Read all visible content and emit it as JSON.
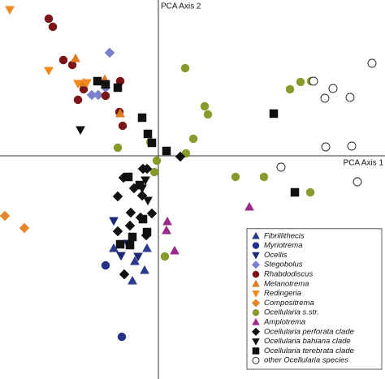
{
  "chart_data": {
    "type": "scatter",
    "xlabel": "PCA Axis 1",
    "ylabel": "PCA Axis 2",
    "xlim": [
      -195,
      279
    ],
    "ylim": [
      -275,
      192
    ],
    "legend": "lower right",
    "series": [
      {
        "name": "Fibrillithecis",
        "color": "#2b3a8c",
        "marker": "triangle",
        "x": [
          -55,
          -14,
          -29,
          -17,
          -32
        ],
        "y": [
          -114,
          -114,
          -130,
          -141,
          -154
        ]
      },
      {
        "name": "Myriotrema",
        "color": "#26328a",
        "marker": "circle",
        "x": [
          -65,
          -45
        ],
        "y": [
          -135,
          -223
        ]
      },
      {
        "name": "Ocellis",
        "color": "#1e2a78",
        "marker": "triangle-down",
        "x": [
          -55,
          -46,
          -25,
          -38
        ],
        "y": [
          -80,
          -123,
          -124,
          -108
        ]
      },
      {
        "name": "Stegobolus",
        "color": "#7b80cf",
        "marker": "diamond",
        "x": [
          -60,
          -82,
          -74,
          -65
        ],
        "y": [
          127,
          75,
          75,
          84
        ]
      },
      {
        "name": "Rhabdodiscus",
        "color": "#7a1416",
        "marker": "circle",
        "x": [
          -135,
          -130,
          -117,
          -106,
          -99,
          -92,
          -65,
          -48,
          -44,
          -47
        ],
        "y": [
          169,
          159,
          118,
          112,
          69,
          82,
          74,
          54,
          37,
          92
        ]
      },
      {
        "name": "Melanotrema",
        "color": "#e07b20",
        "marker": "triangle",
        "x": [
          -102,
          -92,
          -66,
          -47
        ],
        "y": [
          120,
          90,
          94,
          52
        ]
      },
      {
        "name": "Redingeria",
        "color": "#f08a1e",
        "marker": "triangle-down",
        "x": [
          -183,
          -135,
          -99,
          -88
        ],
        "y": [
          180,
          105,
          89,
          90
        ]
      },
      {
        "name": "Compositrema",
        "color": "#e8842a",
        "marker": "diamond",
        "x": [
          -189,
          -165
        ],
        "y": [
          -74,
          -89
        ]
      },
      {
        "name": "Ocellularia s.str.",
        "color": "#8a9a2a",
        "marker": "circle",
        "x": [
          33,
          57,
          61,
          43,
          34,
          -2,
          -50,
          -10,
          95,
          130,
          187,
          162,
          175,
          188,
          8,
          -5
        ],
        "y": [
          108,
          61,
          51,
          21,
          3,
          -6,
          10,
          17,
          -26,
          -26,
          -45,
          82,
          91,
          92,
          -124,
          -20
        ]
      },
      {
        "name": "Amplotrema",
        "color": "#9b2a8a",
        "marker": "triangle",
        "x": [
          11,
          10,
          112,
          20
        ],
        "y": [
          -81,
          -92,
          -63,
          -117
        ]
      },
      {
        "name": "Ocellularia perforata clade",
        "color": "#111111",
        "marker": "diamond",
        "x": [
          27,
          -14,
          -19,
          -43,
          -30,
          -20,
          -50,
          -34,
          -22,
          -8,
          -35,
          -50,
          -15,
          -42
        ],
        "y": [
          -1,
          -16,
          -16,
          -27,
          -40,
          -49,
          -50,
          -70,
          -76,
          -71,
          -86,
          -93,
          -98,
          -146
        ]
      },
      {
        "name": "Ocellularia bahiana clade",
        "color": "#111111",
        "marker": "triangle-down",
        "x": [
          -96,
          -16,
          -20,
          -13
        ],
        "y": [
          32,
          -30,
          -40,
          -55
        ]
      },
      {
        "name": "Ocellularia terebrata clade",
        "color": "#111111",
        "marker": "square",
        "x": [
          -75,
          -50,
          -20,
          -13,
          -8,
          10,
          -37,
          -23,
          -47,
          -35,
          -32,
          -14,
          168,
          142,
          -19,
          -65
        ],
        "y": [
          92,
          84,
          47,
          27,
          16,
          6,
          -26,
          -36,
          -109,
          -110,
          -100,
          -94,
          -45,
          52,
          -78,
          88
        ]
      },
      {
        "name": "other Ocellularia species",
        "color": "#ffffff",
        "edgecolor": "#222222",
        "marker": "circle",
        "x": [
          191,
          215,
          205,
          236,
          263,
          206,
          238,
          151,
          245
        ],
        "y": [
          92,
          83,
          71,
          72,
          114,
          11,
          12,
          -14,
          -32
        ]
      }
    ]
  }
}
